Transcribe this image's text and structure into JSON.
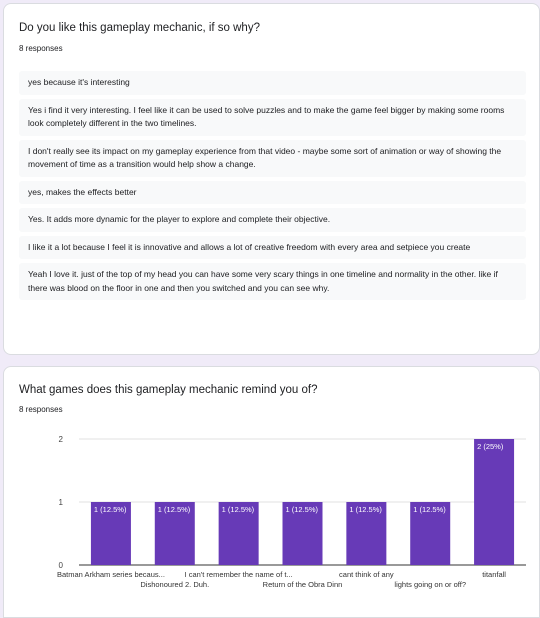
{
  "q1": {
    "title": "Do you like this gameplay mechanic, if so why?",
    "count": "8 responses",
    "responses": [
      "yes because it's interesting",
      "Yes i find it very interesting. I feel like it can be used to solve puzzles and to make the game feel bigger by making some rooms look completely different in the two timelines.",
      "I don't really see its impact on my gameplay experience from that video - maybe some sort of animation or way of showing the movement of time as a transition would help show a change.",
      "yes, makes the effects better",
      "Yes. It adds more dynamic for the player to explore and complete their objective.",
      "I like it a lot because I feel it is innovative and allows a lot of creative freedom with every area and setpiece you create",
      "Yeah I love it. just of the top of my head you can have some very scary things in one timeline and normality in the other. like if there was blood on the floor in one and then you switched and you can see why."
    ]
  },
  "q2": {
    "title": "What games does this gameplay mechanic remind you of?",
    "count": "8 responses"
  },
  "chart_data": {
    "type": "bar",
    "categories": [
      "Batman Arkham series becaus...",
      "Dishonoured 2. Duh.",
      "I can't remember the name of t...",
      "Return of the Obra Dinn",
      "cant think of any",
      "lights going on or off?",
      "titanfall"
    ],
    "values": [
      1,
      1,
      1,
      1,
      1,
      1,
      2
    ],
    "data_labels": [
      "1 (12.5%)",
      "1 (12.5%)",
      "1 (12.5%)",
      "1 (12.5%)",
      "1 (12.5%)",
      "1 (12.5%)",
      "2 (25%)"
    ],
    "yticks": [
      "0",
      "1",
      "2"
    ],
    "ylim": [
      0,
      2
    ],
    "grid": true,
    "bar_color": "#673ab7"
  }
}
